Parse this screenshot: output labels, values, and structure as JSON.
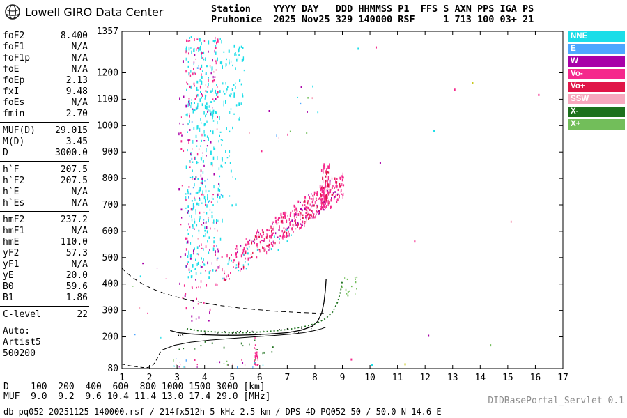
{
  "header": {
    "logo_title": "Lowell GIRO Data Center",
    "station_line1": "Station    YYYY DAY   DDD HHMMSS P1  FFS S AXN PPS IGA PS",
    "station_line2": "Pruhonice  2025 Nov25 329 140000 RSF     1 713 100 03+ 21"
  },
  "params": {
    "rows": [
      {
        "label": "foF2",
        "value": "8.400"
      },
      {
        "label": "foF1",
        "value": "N/A"
      },
      {
        "label": "foF1p",
        "value": "N/A"
      },
      {
        "label": "foE",
        "value": "N/A"
      },
      {
        "label": "foEp",
        "value": "2.13"
      },
      {
        "label": "fxI",
        "value": "9.48"
      },
      {
        "label": "foEs",
        "value": "N/A"
      },
      {
        "label": "fmin",
        "value": "2.70"
      },
      {
        "divider": true
      },
      {
        "label": "MUF(D)",
        "value": "29.015"
      },
      {
        "label": "M(D)",
        "value": "3.45"
      },
      {
        "label": "D",
        "value": "3000.0"
      },
      {
        "divider": true
      },
      {
        "label": "h`F",
        "value": "207.5"
      },
      {
        "label": "h`F2",
        "value": "207.5"
      },
      {
        "label": "h`E",
        "value": "N/A"
      },
      {
        "label": "h`Es",
        "value": "N/A"
      },
      {
        "divider": true
      },
      {
        "label": "hmF2",
        "value": "237.2"
      },
      {
        "label": "hmF1",
        "value": "N/A"
      },
      {
        "label": "hmE",
        "value": "110.0"
      },
      {
        "label": "yF2",
        "value": "57.3"
      },
      {
        "label": "yF1",
        "value": "N/A"
      },
      {
        "label": "yE",
        "value": "20.0"
      },
      {
        "label": "B0",
        "value": "59.6"
      },
      {
        "label": "B1",
        "value": "1.86"
      },
      {
        "divider": true
      },
      {
        "label": "C-level",
        "value": "22"
      },
      {
        "divider": true
      },
      {
        "label": "Auto:",
        "value": ""
      },
      {
        "label": "Artist5",
        "value": ""
      },
      {
        "label": "500200",
        "value": ""
      }
    ]
  },
  "legend": [
    {
      "label": "NNE",
      "key": "NNE"
    },
    {
      "label": "E",
      "key": "E"
    },
    {
      "label": "W",
      "key": "W"
    },
    {
      "label": "Vo-",
      "key": "Vo-"
    },
    {
      "label": "Vo+",
      "key": "Vo+"
    },
    {
      "label": "SSW",
      "key": "SSW"
    },
    {
      "label": "X-",
      "key": "X-"
    },
    {
      "label": "X+",
      "key": "X+"
    }
  ],
  "muf_table": {
    "d_label": "D",
    "d_values": [
      "100",
      "200",
      "400",
      "600",
      "800",
      "1000",
      "1500",
      "3000"
    ],
    "d_unit": "[km]",
    "muf_label": "MUF",
    "muf_values": [
      "9.0",
      "9.2",
      "9.6",
      "10.4",
      "11.4",
      "13.0",
      "17.4",
      "29.0"
    ],
    "muf_unit": "[MHz]"
  },
  "status_bar": {
    "text": "db pq052 20251125 140000.rsf / 214fx512h 5 kHz 2.5 km / DPS-4D PQ052 50 / 50.0 N 14.6 E",
    "servlet": "DIDBasePortal_Servlet 0.1"
  },
  "chart_data": {
    "type": "scatter",
    "title": "Pruhonice ionogram 2025 Nov25 329 140000",
    "xlabel": "[MHz]",
    "ylabel": "[km]",
    "xlim": [
      1,
      17
    ],
    "ylim": [
      80,
      1357
    ],
    "x_ticks": [
      1,
      2,
      3,
      4,
      5,
      6,
      7,
      8,
      9,
      10,
      11,
      12,
      13,
      14,
      15,
      16,
      17
    ],
    "y_ticks": [
      80,
      200,
      300,
      400,
      500,
      600,
      700,
      800,
      900,
      1000,
      1100,
      1200,
      1357
    ],
    "grid": false,
    "legend_position": "right-outside",
    "colors": {
      "NNE": "#1bdde8",
      "E": "#4da6ff",
      "W": "#a800a8",
      "Vo-": "#f5288c",
      "Vo+": "#e01648",
      "SSW": "#f7a8be",
      "X-": "#1c701c",
      "X+": "#72be5a",
      "black": "#000000",
      "other": "#c8c81e",
      "mixed_palette": [
        "NNE",
        "Vo-",
        "W",
        "X+",
        "E",
        "SSW"
      ]
    },
    "traces": [
      {
        "name": "true-height-profile",
        "color": "black",
        "width": 1,
        "dash": "",
        "points": [
          [
            2.45,
            150
          ],
          [
            2.9,
            168
          ],
          [
            3.5,
            180
          ],
          [
            4.2,
            188
          ],
          [
            5.0,
            194
          ],
          [
            5.8,
            200
          ],
          [
            6.5,
            205
          ],
          [
            7.1,
            210
          ],
          [
            7.6,
            216
          ],
          [
            8.0,
            224
          ],
          [
            8.25,
            231
          ],
          [
            8.4,
            237
          ]
        ]
      },
      {
        "name": "o-trace",
        "color": "black",
        "width": 1.3,
        "dash": "",
        "points": [
          [
            2.75,
            224
          ],
          [
            3.05,
            216
          ],
          [
            3.5,
            211
          ],
          [
            4.0,
            208
          ],
          [
            4.6,
            206
          ],
          [
            5.2,
            206
          ],
          [
            5.8,
            208
          ],
          [
            6.4,
            211
          ],
          [
            7.0,
            216
          ],
          [
            7.5,
            225
          ],
          [
            7.9,
            240
          ],
          [
            8.1,
            258
          ],
          [
            8.25,
            290
          ],
          [
            8.33,
            330
          ],
          [
            8.38,
            375
          ],
          [
            8.41,
            420
          ]
        ]
      },
      {
        "name": "x-trace",
        "color": "X-",
        "width": 1.8,
        "dash": "2 3",
        "points": [
          [
            3.35,
            231
          ],
          [
            3.8,
            223
          ],
          [
            4.3,
            219
          ],
          [
            4.9,
            216
          ],
          [
            5.5,
            216
          ],
          [
            6.1,
            219
          ],
          [
            6.7,
            224
          ],
          [
            7.2,
            231
          ],
          [
            7.7,
            241
          ],
          [
            8.1,
            253
          ],
          [
            8.4,
            270
          ],
          [
            8.65,
            295
          ],
          [
            8.82,
            330
          ],
          [
            8.93,
            370
          ],
          [
            8.99,
            408
          ]
        ]
      },
      {
        "name": "transmission-curve",
        "color": "black",
        "width": 1,
        "dash": "6 5",
        "points": [
          [
            1.0,
            460
          ],
          [
            1.2,
            440
          ],
          [
            1.45,
            420
          ],
          [
            1.75,
            400
          ],
          [
            2.1,
            382
          ],
          [
            2.5,
            366
          ],
          [
            2.95,
            352
          ],
          [
            3.45,
            339
          ],
          [
            4.0,
            328
          ],
          [
            4.6,
            318
          ],
          [
            5.2,
            310
          ],
          [
            5.9,
            303
          ],
          [
            6.6,
            297
          ],
          [
            7.3,
            293
          ],
          [
            8.0,
            290
          ],
          [
            8.45,
            288
          ]
        ]
      },
      {
        "name": "low-freq-dashed",
        "color": "black",
        "width": 1,
        "dash": "5 4",
        "points": [
          [
            1.0,
            97
          ],
          [
            1.25,
            91
          ],
          [
            1.5,
            87
          ],
          [
            1.75,
            84
          ],
          [
            1.95,
            84
          ],
          [
            2.1,
            90
          ],
          [
            2.2,
            103
          ],
          [
            2.3,
            122
          ],
          [
            2.38,
            140
          ],
          [
            2.45,
            152
          ]
        ]
      }
    ],
    "clusters": [
      {
        "series": "NNE",
        "kind": "box",
        "x": [
          3.3,
          4.65
        ],
        "y": [
          640,
          1340
        ],
        "count": 240,
        "seed": 11,
        "w": [
          1,
          2
        ],
        "h": [
          2,
          6
        ]
      },
      {
        "series": "NNE",
        "kind": "box",
        "x": [
          3.3,
          4.6
        ],
        "y": [
          430,
          650
        ],
        "count": 60,
        "seed": 12,
        "w": [
          1,
          2
        ],
        "h": [
          2,
          5
        ]
      },
      {
        "series": "NNE",
        "kind": "box",
        "x": [
          4.65,
          5.45
        ],
        "y": [
          1080,
          1310
        ],
        "count": 55,
        "seed": 13,
        "w": [
          1,
          2
        ],
        "h": [
          2,
          5
        ]
      },
      {
        "series": "NNE",
        "kind": "box",
        "x": [
          4.6,
          5.3
        ],
        "y": [
          700,
          1080
        ],
        "count": 22,
        "seed": 14,
        "w": [
          1,
          2
        ],
        "h": [
          2,
          4
        ]
      },
      {
        "series": "W",
        "kind": "box",
        "x": [
          3.05,
          4.55
        ],
        "y": [
          260,
          1300
        ],
        "count": 85,
        "seed": 15,
        "w": [
          1,
          2
        ],
        "h": [
          2,
          4
        ]
      },
      {
        "series": "Vo-",
        "kind": "box",
        "x": [
          3.2,
          4.5
        ],
        "y": [
          1100,
          1340
        ],
        "count": 50,
        "seed": 16,
        "w": [
          1,
          2
        ],
        "h": [
          2,
          4
        ]
      },
      {
        "series": "Vo-",
        "kind": "box",
        "x": [
          3.1,
          4.45
        ],
        "y": [
          300,
          1100
        ],
        "count": 60,
        "seed": 17,
        "w": [
          1,
          2
        ],
        "h": [
          2,
          4
        ]
      },
      {
        "series": "SSW",
        "kind": "box",
        "x": [
          3.3,
          4.5
        ],
        "y": [
          400,
          1250
        ],
        "count": 22,
        "seed": 18,
        "w": [
          1,
          2
        ],
        "h": [
          2,
          3
        ]
      },
      {
        "series": "E",
        "kind": "box",
        "x": [
          3.4,
          4.6
        ],
        "y": [
          500,
          1250
        ],
        "count": 16,
        "seed": 19,
        "w": [
          1,
          2
        ],
        "h": [
          2,
          3
        ]
      },
      {
        "series": "Vo-",
        "kind": "band",
        "x": [
          4.35,
          9.05
        ],
        "y": [
          435,
          790
        ],
        "jitter": 55,
        "bias": 0.65,
        "count": 280,
        "seed": 21,
        "w": [
          1,
          2
        ],
        "h": [
          2,
          5
        ]
      },
      {
        "series": "Vo+",
        "kind": "band",
        "x": [
          4.6,
          8.9
        ],
        "y": [
          450,
          780
        ],
        "jitter": 45,
        "bias": 0.65,
        "count": 90,
        "seed": 22,
        "w": [
          1,
          2
        ],
        "h": [
          2,
          4
        ]
      },
      {
        "series": "W",
        "kind": "band",
        "x": [
          4.5,
          8.85
        ],
        "y": [
          440,
          775
        ],
        "jitter": 50,
        "bias": 0.7,
        "count": 55,
        "seed": 23,
        "w": [
          1,
          2
        ],
        "h": [
          2,
          3
        ]
      },
      {
        "series": "SSW",
        "kind": "band",
        "x": [
          5.0,
          8.6
        ],
        "y": [
          470,
          745
        ],
        "jitter": 42,
        "bias": 0.7,
        "count": 28,
        "seed": 24,
        "w": [
          1,
          2
        ],
        "h": [
          2,
          3
        ]
      },
      {
        "series": "NNE",
        "kind": "band",
        "x": [
          4.6,
          7.2
        ],
        "y": [
          450,
          600
        ],
        "jitter": 40,
        "bias": 1,
        "count": 26,
        "seed": 34,
        "w": [
          1,
          2
        ],
        "h": [
          2,
          3
        ]
      },
      {
        "series": "Vo-",
        "kind": "box",
        "x": [
          8.2,
          8.55
        ],
        "y": [
          690,
          870
        ],
        "count": 38,
        "seed": 25,
        "w": [
          1,
          2
        ],
        "h": [
          3,
          8
        ]
      },
      {
        "series": "Vo+",
        "kind": "box",
        "x": [
          8.25,
          8.5
        ],
        "y": [
          700,
          850
        ],
        "count": 16,
        "seed": 26,
        "w": [
          1,
          2
        ],
        "h": [
          3,
          6
        ]
      },
      {
        "series": "Vo-",
        "kind": "box",
        "x": [
          5.75,
          5.95
        ],
        "y": [
          95,
          215
        ],
        "count": 20,
        "seed": 27,
        "w": [
          1,
          2
        ],
        "h": [
          2,
          5
        ]
      },
      {
        "series": "X-",
        "kind": "box",
        "x": [
          2.5,
          6.6
        ],
        "y": [
          140,
          195
        ],
        "count": 16,
        "seed": 28,
        "w": [
          1,
          2
        ],
        "h": [
          1,
          3
        ]
      },
      {
        "series": "mixed",
        "kind": "box",
        "x": [
          1.9,
          6.6
        ],
        "y": [
          86,
          118
        ],
        "count": 30,
        "seed": 29,
        "w": [
          1,
          2
        ],
        "h": [
          1,
          3
        ]
      },
      {
        "series": "X+",
        "kind": "box",
        "x": [
          8.85,
          9.55
        ],
        "y": [
          360,
          430
        ],
        "count": 15,
        "seed": 30,
        "w": [
          1,
          2
        ],
        "h": [
          2,
          3
        ]
      },
      {
        "series": "mixed",
        "kind": "box",
        "x": [
          5.6,
          8.2
        ],
        "y": [
          850,
          1160
        ],
        "count": 16,
        "seed": 31,
        "w": [
          1,
          2
        ],
        "h": [
          2,
          3
        ]
      },
      {
        "series": "mixed",
        "kind": "box",
        "x": [
          1.05,
          2.6
        ],
        "y": [
          95,
          520
        ],
        "count": 9,
        "seed": 32,
        "w": [
          1,
          2
        ],
        "h": [
          1,
          3
        ]
      },
      {
        "series": "black",
        "kind": "band",
        "x": [
          2.8,
          8.1
        ],
        "y": [
          205,
          230
        ],
        "jitter": 9,
        "bias": 1,
        "count": 36,
        "seed": 33,
        "w": [
          1,
          1
        ],
        "h": [
          1,
          2
        ]
      }
    ],
    "singles": [
      {
        "x": 9.55,
        "y": 1295,
        "series": "NNE"
      },
      {
        "x": 10.2,
        "y": 1300,
        "series": "Vo-"
      },
      {
        "x": 10.35,
        "y": 862,
        "series": "W"
      },
      {
        "x": 11.6,
        "y": 565,
        "series": "Vo-"
      },
      {
        "x": 12.3,
        "y": 985,
        "series": "NNE"
      },
      {
        "x": 13.05,
        "y": 1140,
        "series": "Vo-"
      },
      {
        "x": 13.7,
        "y": 1165,
        "series": "other"
      },
      {
        "x": 11.25,
        "y": 100,
        "series": "other"
      },
      {
        "x": 14.35,
        "y": 172,
        "series": "X+"
      },
      {
        "x": 12.1,
        "y": 208,
        "series": "W"
      },
      {
        "x": 9.3,
        "y": 118,
        "series": "Vo-"
      },
      {
        "x": 10.05,
        "y": 96,
        "series": "NNE"
      },
      {
        "x": 15.1,
        "y": 640,
        "series": "SSW"
      },
      {
        "x": 16.1,
        "y": 1120,
        "series": "Vo-"
      }
    ]
  }
}
